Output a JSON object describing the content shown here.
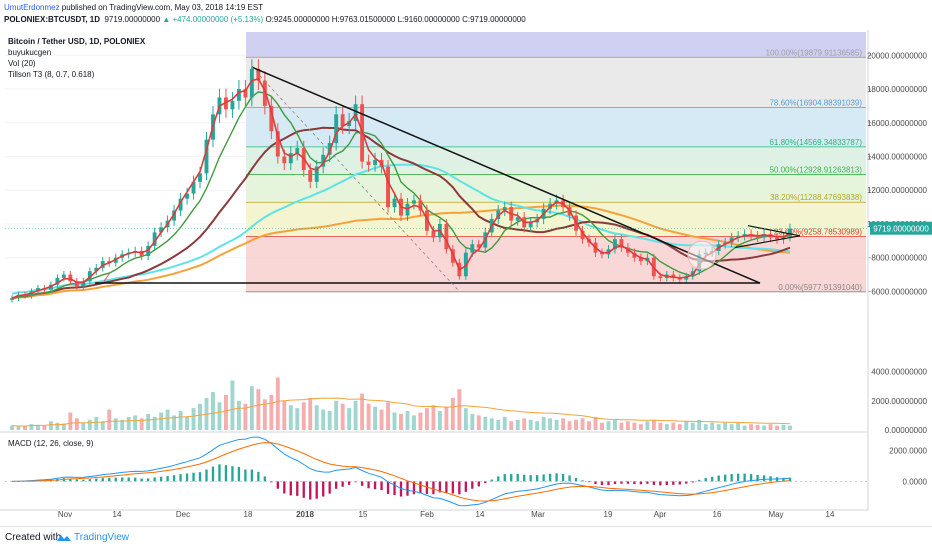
{
  "header": {
    "author": "UmutErdonmez",
    "published": " published on TradingView.com, May 03, 2018 14:19 EST",
    "symbol": "POLONIEX:BTCUSDT, 1D",
    "last": "9719.00000000",
    "change": "▲ +474.00000000 (+5.13%)",
    "ohlc": "O:9245.00000000 H:9763.01500000 L:9160.00000000 C:9719.00000000"
  },
  "legend": {
    "title": "Bitcoin / Tether USD, 1D, POLONIEX",
    "author": "buyukucgen",
    "vol": "Vol (20)",
    "tillson": "Tillson T3 (8, 0.7, 0.618)"
  },
  "macd_label": "MACD (12, 26, close, 9)",
  "footer": {
    "created": "Created with",
    "brand": "TradingView"
  },
  "colors": {
    "up": "#26a69a",
    "down": "#ef5350",
    "fib_line": "#aaaaaa",
    "ma_cyan": "#5ee3e8",
    "ma_orange": "#f6a23b",
    "ma_brown": "#8b3a3a",
    "ma_green": "#3e9b3e",
    "tillson": "#e03a3a",
    "trendline": "#111111",
    "macd": "#2196f3",
    "signal": "#ff6d00"
  },
  "chart_data": {
    "type": "candlestick",
    "title": "Bitcoin / Tether USD, 1D, POLONIEX",
    "xlabel": "",
    "ylabel": "",
    "x_tick_labels": [
      "Nov",
      "14",
      "Dec",
      "18",
      "2018",
      "15",
      "Feb",
      "14",
      "Mar",
      "19",
      "Apr",
      "16",
      "May",
      "14"
    ],
    "y_tick_labels": [
      "20000.00000000",
      "18000.00000000",
      "16000.00000000",
      "14000.00000000",
      "12000.00000000",
      "10000.00000000",
      "8000.00000000",
      "6000.00000000"
    ],
    "volume_tick_labels": [
      "4000.00000000",
      "2000.00000000",
      "0.00000000"
    ],
    "macd_tick_labels": [
      "2000.0000",
      "0.0000"
    ],
    "ylim": [
      4900,
      21500
    ],
    "last_price_label": "9719.00000000",
    "last_price": 9719,
    "fib_levels": [
      {
        "label": "100.00%(19879.91136585)",
        "value": 19879.91,
        "color": "#9f9f9f"
      },
      {
        "label": "78.60%(16904.88391039)",
        "value": 16904.88,
        "color": "#4aa3df"
      },
      {
        "label": "61.80%(14569.34833787)",
        "value": 14569.35,
        "color": "#2bb673"
      },
      {
        "label": "50.00%(12928.91263813)",
        "value": 12928.91,
        "color": "#3cb44b"
      },
      {
        "label": "38.20%(11288.47693838)",
        "value": 11288.48,
        "color": "#b5a624"
      },
      {
        "label": "23.60%(9258.78530989)",
        "value": 9258.79,
        "color": "#e53935"
      },
      {
        "label": "0.00%(5977.91391040)",
        "value": 5977.91,
        "color": "#888888"
      }
    ],
    "closes": [
      5600,
      5800,
      5750,
      6000,
      6200,
      6100,
      6400,
      6800,
      7000,
      6600,
      6300,
      6600,
      7200,
      7400,
      7800,
      7700,
      8000,
      8200,
      8300,
      8400,
      8100,
      8700,
      9500,
      9800,
      10200,
      10800,
      11500,
      11800,
      12500,
      13000,
      15000,
      16500,
      17500,
      16800,
      17300,
      18000,
      17500,
      19200,
      18500,
      17000,
      15500,
      14000,
      13600,
      14200,
      14500,
      13200,
      12500,
      13400,
      14100,
      14800,
      16500,
      15800,
      16100,
      17100,
      13700,
      13500,
      13800,
      13400,
      11000,
      11500,
      10500,
      11200,
      11400,
      10800,
      9600,
      9200,
      10000,
      8500,
      7700,
      6900,
      8300,
      8800,
      8600,
      9500,
      10300,
      10800,
      11000,
      10200,
      10400,
      9800,
      10100,
      10300,
      10900,
      11200,
      11400,
      11000,
      10500,
      9600,
      9100,
      8900,
      8300,
      8200,
      8500,
      9100,
      8600,
      8300,
      8000,
      7800,
      8000,
      6900,
      6800,
      7000,
      6800,
      6700,
      6900,
      7200,
      8200,
      8300,
      8400,
      8800,
      8900,
      9200,
      9300,
      9400,
      9300,
      9200,
      9400,
      9200,
      9100,
      9245,
      9719
    ],
    "series": [
      {
        "name": "Tillson T3 (8, 0.7, 0.618)",
        "values": [
          5600,
          5750,
          5800,
          5900,
          6050,
          6150,
          6300,
          6500,
          6750,
          6750,
          6550,
          6550,
          6850,
          7200,
          7550,
          7700,
          7900,
          8100,
          8250,
          8350,
          8300,
          8450,
          8950,
          9500,
          10000,
          10600,
          11300,
          11900,
          12500,
          13100,
          14400,
          15800,
          17000,
          17200,
          17400,
          17800,
          17900,
          18500,
          18600,
          17900,
          16700,
          15200,
          14200,
          14000,
          14200,
          13900,
          13300,
          13200,
          13600,
          14300,
          15400,
          15800,
          16000,
          16500,
          15500,
          14400,
          13900,
          13600,
          12500,
          11800,
          11000,
          10900,
          11100,
          11000,
          10300,
          9600,
          9600,
          9000,
          8200,
          7300,
          7500,
          8200,
          8500,
          9100,
          9900,
          10500,
          10800,
          10600,
          10500,
          10100,
          10100,
          10200,
          10600,
          11000,
          11300,
          11200,
          10800,
          10100,
          9500,
          9000,
          8600,
          8300,
          8300,
          8600,
          8700,
          8500,
          8200,
          8000,
          7900,
          7400,
          7000,
          6900,
          6850,
          6800,
          6850,
          7000,
          7600,
          8100,
          8300,
          8600,
          8800,
          9000,
          9200,
          9300,
          9350,
          9300,
          9350,
          9300,
          9250,
          9240,
          9450
        ]
      }
    ],
    "volume": [
      300,
      250,
      280,
      400,
      350,
      300,
      600,
      500,
      450,
      1200,
      800,
      500,
      700,
      900,
      600,
      1400,
      800,
      700,
      900,
      1000,
      800,
      1100,
      900,
      1200,
      1400,
      1000,
      1300,
      900,
      1500,
      1800,
      2200,
      2600,
      1900,
      2400,
      3400,
      2000,
      1800,
      3000,
      2800,
      2100,
      2400,
      3600,
      2000,
      1700,
      1500,
      1900,
      2200,
      1700,
      1400,
      1300,
      2000,
      1800,
      1500,
      2000,
      2500,
      1800,
      1600,
      1400,
      1900,
      1200,
      1100,
      1300,
      1000,
      1200,
      1500,
      1700,
      1300,
      1600,
      2200,
      2800,
      1500,
      1100,
      1000,
      900,
      800,
      700,
      900,
      600,
      700,
      800,
      700,
      600,
      900,
      800,
      700,
      800,
      600,
      700,
      800,
      600,
      900,
      500,
      600,
      700,
      500,
      600,
      500,
      400,
      600,
      700,
      500,
      400,
      500,
      400,
      600,
      500,
      700,
      400,
      500,
      400,
      500,
      400,
      500,
      300,
      400,
      350,
      300,
      400,
      300,
      350,
      300
    ],
    "macd_range": [
      -1200,
      2800
    ]
  }
}
